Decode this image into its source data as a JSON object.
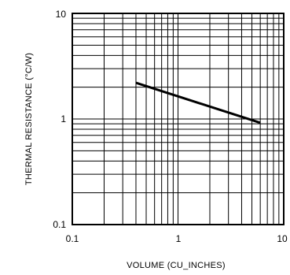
{
  "chart_data": {
    "type": "line",
    "title": "",
    "xlabel": "VOLUME (CU_INCHES)",
    "ylabel": "THERMAL RESISTANCE (°C/W)",
    "xscale": "log",
    "yscale": "log",
    "xlim": [
      0.1,
      10
    ],
    "ylim": [
      0.1,
      10
    ],
    "x_tick_labels": [
      "0.1",
      "1",
      "10"
    ],
    "y_tick_labels": [
      "10",
      "1",
      "0.1"
    ],
    "grid": true,
    "legend": "none",
    "series": [
      {
        "x": [
          0.4,
          6.0
        ],
        "y": [
          2.2,
          0.92
        ],
        "color": "#000000"
      }
    ]
  }
}
